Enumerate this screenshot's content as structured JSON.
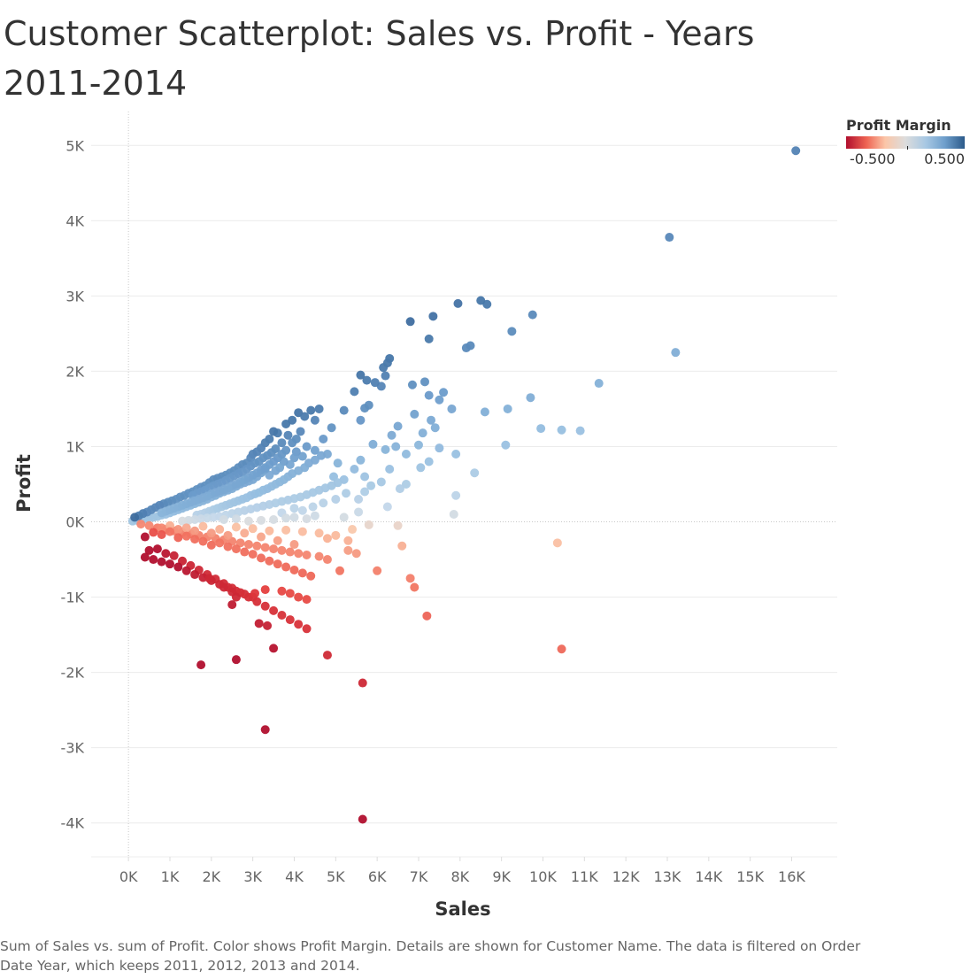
{
  "title": "Customer Scatterplot: Sales vs. Profit - Years 2011-2014",
  "caption": "Sum of Sales vs. sum of Profit.  Color shows Profit Margin.  Details are shown for Customer Name. The data is filtered on Order Date Year, which keeps 2011, 2012, 2013 and 2014.",
  "legend": {
    "title": "Profit Margin",
    "min_label": "-0.500",
    "max_label": "0.500",
    "colors": [
      "#b10f2e",
      "#ee6352",
      "#fbc6a8",
      "#dcdcdc",
      "#a8c8e3",
      "#6f9fcc",
      "#2c5a8a"
    ]
  },
  "chart_data": {
    "type": "scatter",
    "xlabel": "Sales",
    "ylabel": "Profit",
    "xlim": [
      -900,
      17100
    ],
    "ylim": [
      -4450,
      5450
    ],
    "x_ticks": [
      0,
      1000,
      2000,
      3000,
      4000,
      5000,
      6000,
      7000,
      8000,
      9000,
      10000,
      11000,
      12000,
      13000,
      14000,
      15000,
      16000
    ],
    "x_tick_labels": [
      "0K",
      "1K",
      "2K",
      "3K",
      "4K",
      "5K",
      "6K",
      "7K",
      "8K",
      "9K",
      "10K",
      "11K",
      "12K",
      "13K",
      "14K",
      "15K",
      "16K"
    ],
    "y_ticks": [
      -4000,
      -3000,
      -2000,
      -1000,
      0,
      1000,
      2000,
      3000,
      4000,
      5000
    ],
    "y_tick_labels": [
      "-4K",
      "-3K",
      "-2K",
      "-1K",
      "0K",
      "1K",
      "2K",
      "3K",
      "4K",
      "5K"
    ],
    "grid": true,
    "zero_lines": true,
    "color_encoding": "Profit Margin",
    "points": [
      [
        16100,
        4930
      ],
      [
        13050,
        3780
      ],
      [
        13200,
        2250
      ],
      [
        11350,
        1840
      ],
      [
        10900,
        1210
      ],
      [
        10450,
        1220
      ],
      [
        9950,
        1240
      ],
      [
        9700,
        1650
      ],
      [
        9150,
        1500
      ],
      [
        9100,
        1020
      ],
      [
        8600,
        1460
      ],
      [
        8350,
        650
      ],
      [
        7900,
        350
      ],
      [
        7850,
        100
      ],
      [
        7900,
        900
      ],
      [
        7800,
        1500
      ],
      [
        9750,
        2750
      ],
      [
        9250,
        2530
      ],
      [
        8650,
        2890
      ],
      [
        8500,
        2940
      ],
      [
        8250,
        2340
      ],
      [
        8150,
        2310
      ],
      [
        7950,
        2900
      ],
      [
        7350,
        2730
      ],
      [
        7250,
        2430
      ],
      [
        6800,
        2660
      ],
      [
        6300,
        2170
      ],
      [
        6250,
        2110
      ],
      [
        6150,
        2050
      ],
      [
        6200,
        1940
      ],
      [
        6100,
        1800
      ],
      [
        5950,
        1850
      ],
      [
        5750,
        1880
      ],
      [
        5600,
        1950
      ],
      [
        5450,
        1730
      ],
      [
        5700,
        1510
      ],
      [
        5800,
        1550
      ],
      [
        5600,
        1350
      ],
      [
        5200,
        1480
      ],
      [
        7600,
        1720
      ],
      [
        7500,
        1620
      ],
      [
        7250,
        1680
      ],
      [
        7150,
        1860
      ],
      [
        6850,
        1820
      ],
      [
        6900,
        1430
      ],
      [
        7100,
        1180
      ],
      [
        7400,
        1250
      ],
      [
        7000,
        1020
      ],
      [
        6500,
        1270
      ],
      [
        6350,
        1150
      ],
      [
        6200,
        960
      ],
      [
        6450,
        1000
      ],
      [
        5900,
        1030
      ],
      [
        5600,
        820
      ],
      [
        5450,
        700
      ],
      [
        5050,
        780
      ],
      [
        4950,
        600
      ],
      [
        4600,
        1500
      ],
      [
        4500,
        1350
      ],
      [
        7300,
        1350
      ],
      [
        7500,
        980
      ],
      [
        7250,
        800
      ],
      [
        7050,
        720
      ],
      [
        6700,
        900
      ],
      [
        6700,
        500
      ],
      [
        6300,
        700
      ],
      [
        6550,
        440
      ],
      [
        6100,
        530
      ],
      [
        5850,
        480
      ],
      [
        5700,
        600
      ],
      [
        5700,
        400
      ],
      [
        5550,
        300
      ],
      [
        5250,
        380
      ],
      [
        5000,
        300
      ],
      [
        4700,
        250
      ],
      [
        4450,
        200
      ],
      [
        4200,
        150
      ],
      [
        4000,
        180
      ],
      [
        3700,
        120
      ],
      [
        5550,
        130
      ],
      [
        6250,
        200
      ],
      [
        4900,
        1250
      ],
      [
        4700,
        1100
      ],
      [
        4500,
        950
      ],
      [
        4300,
        1000
      ],
      [
        4200,
        870
      ],
      [
        4050,
        930
      ],
      [
        4000,
        850
      ],
      [
        3900,
        760
      ],
      [
        3750,
        800
      ],
      [
        3650,
        720
      ],
      [
        3550,
        680
      ],
      [
        3400,
        620
      ],
      [
        3300,
        700
      ],
      [
        3200,
        650
      ],
      [
        3100,
        600
      ],
      [
        3000,
        560
      ],
      [
        2900,
        540
      ],
      [
        2800,
        520
      ],
      [
        2700,
        500
      ],
      [
        2600,
        470
      ],
      [
        2500,
        440
      ],
      [
        2400,
        420
      ],
      [
        2300,
        400
      ],
      [
        2200,
        380
      ],
      [
        2100,
        350
      ],
      [
        2000,
        330
      ],
      [
        1900,
        300
      ],
      [
        1800,
        280
      ],
      [
        1700,
        260
      ],
      [
        1600,
        240
      ],
      [
        1500,
        220
      ],
      [
        1400,
        200
      ],
      [
        1300,
        180
      ],
      [
        1200,
        160
      ],
      [
        1100,
        140
      ],
      [
        1000,
        120
      ],
      [
        900,
        100
      ],
      [
        800,
        90
      ],
      [
        700,
        70
      ],
      [
        600,
        60
      ],
      [
        500,
        50
      ],
      [
        400,
        40
      ],
      [
        300,
        30
      ],
      [
        200,
        20
      ],
      [
        100,
        10
      ],
      [
        3800,
        1300
      ],
      [
        3600,
        1180
      ],
      [
        3500,
        1200
      ],
      [
        3400,
        1100
      ],
      [
        3300,
        1050
      ],
      [
        3200,
        980
      ],
      [
        3100,
        930
      ],
      [
        3000,
        900
      ],
      [
        2950,
        850
      ],
      [
        2850,
        780
      ],
      [
        2750,
        760
      ],
      [
        2650,
        720
      ],
      [
        2550,
        680
      ],
      [
        2450,
        650
      ],
      [
        2350,
        620
      ],
      [
        2250,
        600
      ],
      [
        2150,
        580
      ],
      [
        2050,
        560
      ],
      [
        1950,
        520
      ],
      [
        1850,
        480
      ],
      [
        1750,
        460
      ],
      [
        1650,
        430
      ],
      [
        1550,
        400
      ],
      [
        1450,
        380
      ],
      [
        1350,
        350
      ],
      [
        1250,
        330
      ],
      [
        1150,
        300
      ],
      [
        1050,
        280
      ],
      [
        950,
        260
      ],
      [
        850,
        240
      ],
      [
        750,
        220
      ],
      [
        650,
        190
      ],
      [
        550,
        160
      ],
      [
        450,
        130
      ],
      [
        350,
        110
      ],
      [
        250,
        80
      ],
      [
        150,
        60
      ],
      [
        4100,
        1450
      ],
      [
        3950,
        1350
      ],
      [
        3850,
        1150
      ],
      [
        3700,
        1050
      ],
      [
        3550,
        970
      ],
      [
        3450,
        920
      ],
      [
        3350,
        880
      ],
      [
        3250,
        850
      ],
      [
        3150,
        800
      ],
      [
        3050,
        780
      ],
      [
        2950,
        740
      ],
      [
        2850,
        700
      ],
      [
        2750,
        660
      ],
      [
        2650,
        640
      ],
      [
        2550,
        610
      ],
      [
        2450,
        580
      ],
      [
        2350,
        550
      ],
      [
        2250,
        520
      ],
      [
        2150,
        500
      ],
      [
        2050,
        480
      ],
      [
        1950,
        450
      ],
      [
        1850,
        420
      ],
      [
        1750,
        400
      ],
      [
        1650,
        380
      ],
      [
        1550,
        350
      ],
      [
        4400,
        1480
      ],
      [
        4250,
        1400
      ],
      [
        4150,
        1200
      ],
      [
        4050,
        1100
      ],
      [
        3950,
        1050
      ],
      [
        3800,
        950
      ],
      [
        3700,
        900
      ],
      [
        3600,
        850
      ],
      [
        3500,
        800
      ],
      [
        3400,
        760
      ],
      [
        3300,
        720
      ],
      [
        3200,
        690
      ],
      [
        3100,
        650
      ],
      [
        3000,
        620
      ],
      [
        2900,
        590
      ],
      [
        2800,
        560
      ],
      [
        2700,
        530
      ],
      [
        2600,
        500
      ],
      [
        2500,
        480
      ],
      [
        2400,
        450
      ],
      [
        2300,
        430
      ],
      [
        2200,
        410
      ],
      [
        2100,
        390
      ],
      [
        2000,
        370
      ],
      [
        1900,
        340
      ],
      [
        1800,
        320
      ],
      [
        1700,
        300
      ],
      [
        1600,
        280
      ],
      [
        1500,
        260
      ],
      [
        1400,
        240
      ],
      [
        1300,
        220
      ],
      [
        1200,
        200
      ],
      [
        1100,
        180
      ],
      [
        1000,
        160
      ],
      [
        900,
        140
      ],
      [
        800,
        120
      ],
      [
        4800,
        900
      ],
      [
        4650,
        880
      ],
      [
        4500,
        820
      ],
      [
        4350,
        780
      ],
      [
        4250,
        720
      ],
      [
        4100,
        680
      ],
      [
        3950,
        640
      ],
      [
        3850,
        600
      ],
      [
        3750,
        560
      ],
      [
        3650,
        530
      ],
      [
        3550,
        500
      ],
      [
        3450,
        470
      ],
      [
        3350,
        440
      ],
      [
        3250,
        420
      ],
      [
        3150,
        390
      ],
      [
        3050,
        370
      ],
      [
        2950,
        350
      ],
      [
        2850,
        320
      ],
      [
        2750,
        300
      ],
      [
        2650,
        280
      ],
      [
        2550,
        260
      ],
      [
        2450,
        240
      ],
      [
        2350,
        220
      ],
      [
        2250,
        200
      ],
      [
        2150,
        180
      ],
      [
        2050,
        160
      ],
      [
        1950,
        140
      ],
      [
        1850,
        120
      ],
      [
        1750,
        100
      ],
      [
        1650,
        90
      ],
      [
        5200,
        560
      ],
      [
        5050,
        520
      ],
      [
        4900,
        480
      ],
      [
        4750,
        450
      ],
      [
        4600,
        420
      ],
      [
        4450,
        390
      ],
      [
        4300,
        360
      ],
      [
        4150,
        330
      ],
      [
        4000,
        310
      ],
      [
        3850,
        290
      ],
      [
        3700,
        270
      ],
      [
        3550,
        250
      ],
      [
        3400,
        230
      ],
      [
        3250,
        210
      ],
      [
        3100,
        190
      ],
      [
        2950,
        170
      ],
      [
        2800,
        150
      ],
      [
        2650,
        130
      ],
      [
        2500,
        110
      ],
      [
        2350,
        90
      ],
      [
        2200,
        70
      ],
      [
        2050,
        60
      ],
      [
        1900,
        50
      ],
      [
        1750,
        40
      ],
      [
        1600,
        30
      ],
      [
        1450,
        20
      ],
      [
        1300,
        10
      ],
      [
        4300,
        40
      ],
      [
        4000,
        60
      ],
      [
        3800,
        50
      ],
      [
        3500,
        30
      ],
      [
        3200,
        20
      ],
      [
        2900,
        10
      ],
      [
        2600,
        40
      ],
      [
        2300,
        30
      ],
      [
        5200,
        60
      ],
      [
        4500,
        80
      ],
      [
        300,
        -30
      ],
      [
        500,
        -50
      ],
      [
        700,
        -80
      ],
      [
        900,
        -100
      ],
      [
        1100,
        -120
      ],
      [
        1300,
        -140
      ],
      [
        1500,
        -160
      ],
      [
        1700,
        -180
      ],
      [
        1900,
        -200
      ],
      [
        2100,
        -220
      ],
      [
        2300,
        -240
      ],
      [
        2500,
        -260
      ],
      [
        2700,
        -280
      ],
      [
        2900,
        -300
      ],
      [
        3100,
        -320
      ],
      [
        3300,
        -340
      ],
      [
        3500,
        -360
      ],
      [
        3700,
        -380
      ],
      [
        3900,
        -400
      ],
      [
        4100,
        -420
      ],
      [
        4300,
        -440
      ],
      [
        1000,
        -50
      ],
      [
        1400,
        -80
      ],
      [
        1800,
        -60
      ],
      [
        2200,
        -100
      ],
      [
        2600,
        -70
      ],
      [
        3000,
        -90
      ],
      [
        3400,
        -120
      ],
      [
        3800,
        -110
      ],
      [
        4200,
        -130
      ],
      [
        4600,
        -150
      ],
      [
        5000,
        -180
      ],
      [
        5400,
        -100
      ],
      [
        5800,
        -40
      ],
      [
        6500,
        -50
      ],
      [
        4800,
        -220
      ],
      [
        5300,
        -250
      ],
      [
        4000,
        -300
      ],
      [
        3600,
        -250
      ],
      [
        3200,
        -200
      ],
      [
        2800,
        -150
      ],
      [
        2400,
        -180
      ],
      [
        2000,
        -150
      ],
      [
        1600,
        -120
      ],
      [
        1200,
        -100
      ],
      [
        800,
        -80
      ],
      [
        400,
        -200
      ],
      [
        600,
        -140
      ],
      [
        800,
        -170
      ],
      [
        1000,
        -130
      ],
      [
        1200,
        -210
      ],
      [
        1400,
        -190
      ],
      [
        1600,
        -230
      ],
      [
        1800,
        -260
      ],
      [
        2000,
        -310
      ],
      [
        2200,
        -280
      ],
      [
        2400,
        -330
      ],
      [
        2600,
        -360
      ],
      [
        2800,
        -400
      ],
      [
        3000,
        -430
      ],
      [
        3200,
        -480
      ],
      [
        3400,
        -520
      ],
      [
        3600,
        -560
      ],
      [
        3800,
        -600
      ],
      [
        4000,
        -640
      ],
      [
        4200,
        -680
      ],
      [
        4400,
        -720
      ],
      [
        5100,
        -650
      ],
      [
        5300,
        -380
      ],
      [
        5500,
        -420
      ],
      [
        4800,
        -500
      ],
      [
        4600,
        -460
      ],
      [
        6600,
        -320
      ],
      [
        10350,
        -280
      ],
      [
        500,
        -380
      ],
      [
        700,
        -360
      ],
      [
        900,
        -420
      ],
      [
        1100,
        -450
      ],
      [
        1300,
        -520
      ],
      [
        1500,
        -580
      ],
      [
        1700,
        -640
      ],
      [
        1900,
        -700
      ],
      [
        2100,
        -760
      ],
      [
        2300,
        -820
      ],
      [
        2500,
        -880
      ],
      [
        2700,
        -940
      ],
      [
        2900,
        -1000
      ],
      [
        3100,
        -1060
      ],
      [
        3300,
        -1120
      ],
      [
        3500,
        -1180
      ],
      [
        3700,
        -1240
      ],
      [
        3900,
        -1300
      ],
      [
        4100,
        -1360
      ],
      [
        4300,
        -1420
      ],
      [
        400,
        -470
      ],
      [
        600,
        -500
      ],
      [
        800,
        -530
      ],
      [
        1000,
        -560
      ],
      [
        1200,
        -600
      ],
      [
        1400,
        -650
      ],
      [
        1600,
        -700
      ],
      [
        1800,
        -740
      ],
      [
        2000,
        -780
      ],
      [
        2200,
        -830
      ],
      [
        2400,
        -870
      ],
      [
        2600,
        -920
      ],
      [
        2800,
        -960
      ],
      [
        3000,
        -1000
      ],
      [
        6000,
        -650
      ],
      [
        6800,
        -750
      ],
      [
        6900,
        -870
      ],
      [
        7200,
        -1250
      ],
      [
        10450,
        -1690
      ],
      [
        1950,
        -750
      ],
      [
        2300,
        -870
      ],
      [
        2500,
        -930
      ],
      [
        2600,
        -1000
      ],
      [
        3050,
        -950
      ],
      [
        3300,
        -900
      ],
      [
        3700,
        -920
      ],
      [
        3900,
        -950
      ],
      [
        4100,
        -1000
      ],
      [
        4300,
        -1030
      ],
      [
        2500,
        -1100
      ],
      [
        3150,
        -1350
      ],
      [
        3350,
        -1380
      ],
      [
        3500,
        -1680
      ],
      [
        4800,
        -1770
      ],
      [
        2600,
        -1830
      ],
      [
        1750,
        -1900
      ],
      [
        5650,
        -2140
      ],
      [
        3300,
        -2760
      ],
      [
        5650,
        -3950
      ]
    ]
  }
}
